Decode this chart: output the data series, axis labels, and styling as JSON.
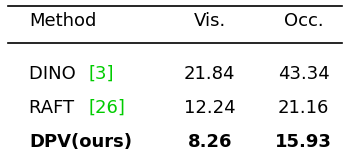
{
  "title": "",
  "col_headers": [
    "Method",
    "Vis.",
    "Occ."
  ],
  "rows": [
    {
      "method": "DINO ",
      "ref": "[3]",
      "vis": "21.84",
      "occ": "43.34",
      "bold": false
    },
    {
      "method": "RAFT ",
      "ref": "[26]",
      "vis": "12.24",
      "occ": "21.16",
      "bold": false
    },
    {
      "method": "DPV(ours)",
      "ref": "",
      "vis": "8.26",
      "occ": "15.93",
      "bold": true
    }
  ],
  "header_color": "#000000",
  "ref_color": "#00cc00",
  "body_color": "#000000",
  "bg_color": "#ffffff",
  "font_size": 13,
  "bold_font_size": 13
}
